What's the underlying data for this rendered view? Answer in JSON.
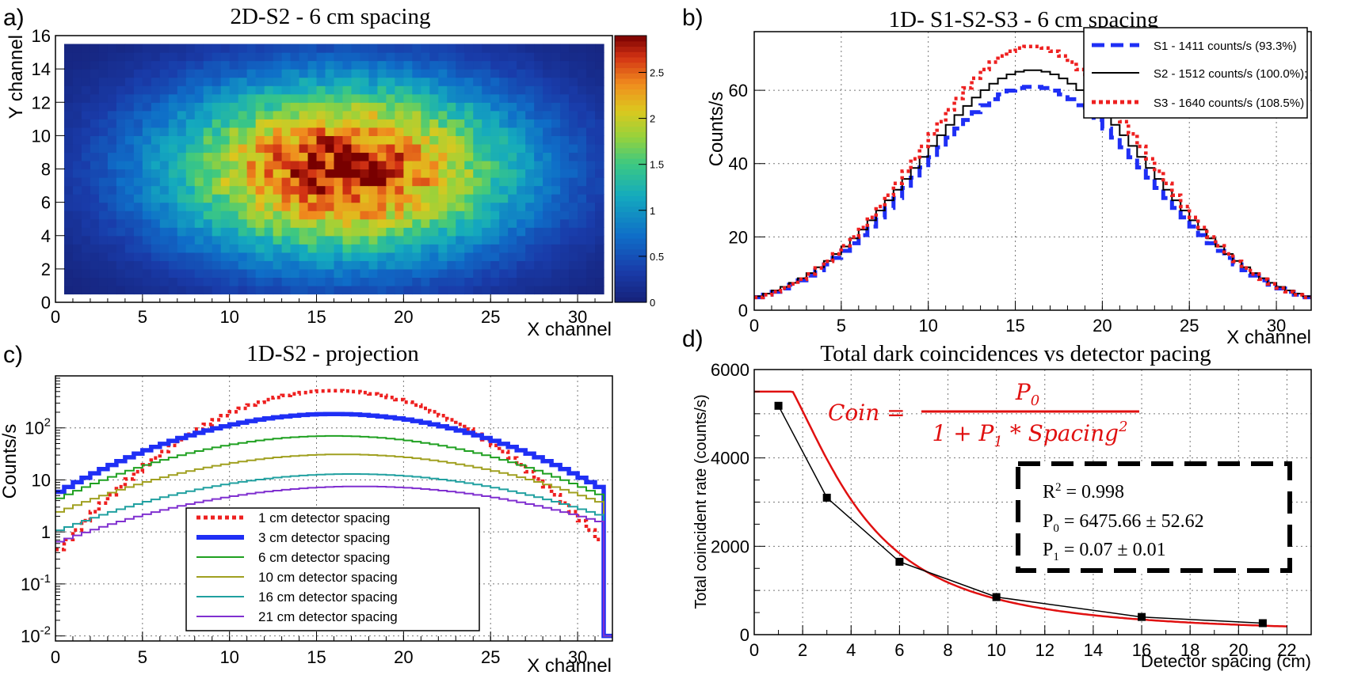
{
  "chart_data": [
    {
      "panel_label": "a)",
      "type": "heatmap",
      "title": "2D-S2 - 6 cm spacing",
      "xlabel": "X channel",
      "ylabel": "Y channel",
      "xlim": [
        0,
        32
      ],
      "ylim": [
        0,
        16
      ],
      "x_ticks": [
        "0",
        "5",
        "10",
        "15",
        "20",
        "25",
        "30"
      ],
      "y_ticks": [
        "0",
        "2",
        "4",
        "6",
        "8",
        "10",
        "12",
        "14",
        "16"
      ],
      "colorbar": {
        "range": [
          0,
          2.9
        ],
        "ticks": [
          "0",
          "0.5",
          "1",
          "1.5",
          "2",
          "2.5"
        ]
      },
      "peak": {
        "x": 16.5,
        "y": 8,
        "value": 2.8
      },
      "sigma": {
        "x": 7.5,
        "y": 3.9
      },
      "active_region": {
        "x": [
          0.5,
          31.5
        ],
        "y": [
          0.5,
          15.5
        ]
      }
    },
    {
      "panel_label": "b)",
      "type": "line",
      "title": "1D- S1-S2-S3 - 6 cm spacing",
      "xlabel": "X channel",
      "ylabel": "Counts/s",
      "xlim": [
        0,
        32
      ],
      "ylim": [
        0,
        76
      ],
      "x_ticks": [
        "0",
        "5",
        "10",
        "15",
        "20",
        "25",
        "30"
      ],
      "y_ticks": [
        "0",
        "20",
        "40",
        "60"
      ],
      "center": 16,
      "series": [
        {
          "name": "S1 - 1411 counts/s (93.3%)",
          "peak": 61,
          "sigma": 6.6,
          "color": "#1f2ff5",
          "style": "dashed-thick"
        },
        {
          "name": "S2 - 1512 counts/s (100.0%);",
          "peak": 65.5,
          "sigma": 6.6,
          "color": "#000000",
          "style": "solid"
        },
        {
          "name": "S3 - 1640 counts/s (108.5%)",
          "peak": 72,
          "sigma": 6.4,
          "color": "#ee2020",
          "style": "dotted"
        }
      ]
    },
    {
      "panel_label": "c)",
      "type": "line",
      "title": "1D-S2 - projection",
      "xlabel": "X channel",
      "ylabel": "Counts/s",
      "xlim": [
        0,
        32
      ],
      "ylog": true,
      "ylim": [
        0.008,
        1000
      ],
      "x_ticks": [
        "0",
        "5",
        "10",
        "15",
        "20",
        "25",
        "30"
      ],
      "y_ticks": [
        {
          "value": 0.01,
          "base": "10",
          "exp": "-2"
        },
        {
          "value": 0.1,
          "base": "10",
          "exp": "-1"
        },
        {
          "value": 1,
          "base": "1",
          "exp": ""
        },
        {
          "value": 10,
          "base": "10",
          "exp": ""
        },
        {
          "value": 100,
          "base": "10",
          "exp": "2"
        }
      ],
      "series": [
        {
          "name": "1 cm detector spacing",
          "peak": 520,
          "center": 16,
          "sigma": 4.2,
          "color": "#ee2020",
          "style": "dotted"
        },
        {
          "name": "3 cm detector spacing",
          "peak": 185,
          "center": 16,
          "sigma": 6.0,
          "color": "#1f2ff5",
          "style": "thick"
        },
        {
          "name": "6 cm detector spacing",
          "peak": 70,
          "center": 16,
          "sigma": 6.7,
          "color": "#1fa020",
          "style": "solid"
        },
        {
          "name": "10 cm detector spacing",
          "peak": 31,
          "center": 16.5,
          "sigma": 7.2,
          "color": "#a0a020",
          "style": "solid"
        },
        {
          "name": "16 cm detector spacing",
          "peak": 13,
          "center": 17,
          "sigma": 7.5,
          "color": "#20a0a0",
          "style": "solid"
        },
        {
          "name": "21 cm detector spacing",
          "peak": 7.5,
          "center": 17.5,
          "sigma": 7.8,
          "color": "#8030d0",
          "style": "solid"
        }
      ]
    },
    {
      "panel_label": "d)",
      "type": "scatter",
      "title": "Total dark coincidences vs detector pacing",
      "xlabel": "Detector spacing (cm)",
      "ylabel": "Total coincident rate (counts/s)",
      "xlim": [
        0,
        23
      ],
      "ylim": [
        0,
        6000
      ],
      "x_ticks": [
        "0",
        "2",
        "4",
        "6",
        "8",
        "10",
        "12",
        "14",
        "16",
        "18",
        "20",
        "22"
      ],
      "y_ticks": [
        "0",
        "2000",
        "4000",
        "6000"
      ],
      "points": {
        "x": [
          1,
          3,
          6,
          10,
          16,
          21
        ],
        "y": [
          5180,
          3100,
          1650,
          850,
          400,
          260
        ]
      },
      "fit": {
        "P0": 6475.66,
        "P1": 0.07,
        "x_range": [
          0,
          22
        ],
        "color": "#e01010"
      },
      "formula": {
        "lhs": "Coin =",
        "numerator": "P",
        "numerator_sub": "0",
        "denominator_pre": "1 + P",
        "denominator_sub": "1",
        "denominator_post": " * Spacing",
        "denominator_sup": "2"
      },
      "stats": {
        "r2_label": "R",
        "r2_sup": "2",
        "r2_value": " = 0.998",
        "p0_label": "P",
        "p0_sub": "0",
        "p0_value": " = 6475.66 ± 52.62",
        "p1_label": "P",
        "p1_sub": "1",
        "p1_value": " = 0.07 ± 0.01"
      }
    }
  ]
}
